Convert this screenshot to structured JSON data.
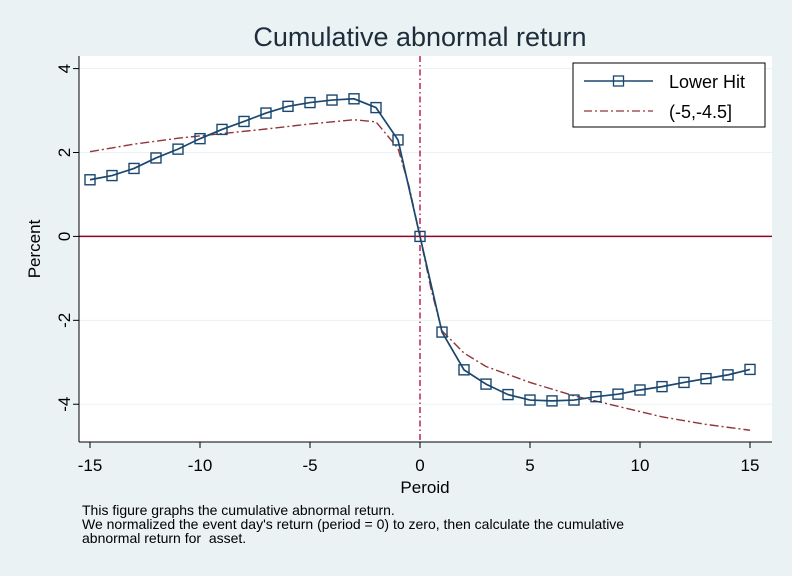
{
  "chart_data": {
    "type": "line",
    "title": "Cumulative abnormal return",
    "xlabel": "Peroid",
    "ylabel": "Percent",
    "xlim": [
      -15.5,
      16
    ],
    "ylim": [
      -4.9,
      4.3
    ],
    "x_ticks": [
      -15,
      -10,
      -5,
      0,
      5,
      10,
      15
    ],
    "x_tick_labels": [
      "-15",
      "-10",
      "-5",
      "0",
      "5",
      "10",
      "15"
    ],
    "y_ticks": [
      -4,
      -2,
      0,
      2,
      4
    ],
    "y_tick_labels": [
      "-4",
      "-2",
      "0",
      "2",
      "4"
    ],
    "grid": true,
    "legend_position": "top-right",
    "hline": {
      "y": 0,
      "color": "#990022"
    },
    "vline": {
      "x": 0,
      "color": "#b0003a"
    },
    "series": [
      {
        "name": "Lower Hit",
        "color": "#1a476f",
        "marker": "hollow-square",
        "x": [
          -15,
          -14,
          -13,
          -12,
          -11,
          -10,
          -9,
          -8,
          -7,
          -6,
          -5,
          -4,
          -3,
          -2,
          -1,
          0,
          1,
          2,
          3,
          4,
          5,
          6,
          7,
          8,
          9,
          10,
          11,
          12,
          13,
          14,
          15
        ],
        "y": [
          1.35,
          1.45,
          1.62,
          1.87,
          2.08,
          2.33,
          2.55,
          2.74,
          2.94,
          3.1,
          3.19,
          3.25,
          3.28,
          3.07,
          2.3,
          0.0,
          -2.28,
          -3.18,
          -3.52,
          -3.77,
          -3.9,
          -3.92,
          -3.9,
          -3.82,
          -3.76,
          -3.66,
          -3.58,
          -3.48,
          -3.39,
          -3.3,
          -3.17
        ]
      },
      {
        "name": "(-5,-4.5]",
        "color": "#90353b",
        "line_style": "dash-dot",
        "x": [
          -15,
          -13,
          -11,
          -9,
          -7,
          -5,
          -3,
          -2,
          -1,
          -0.5,
          0,
          0.5,
          1,
          2,
          3,
          5,
          7,
          9,
          11,
          13,
          15
        ],
        "y": [
          2.02,
          2.2,
          2.34,
          2.45,
          2.56,
          2.68,
          2.78,
          2.73,
          2.1,
          1.2,
          0.0,
          -1.25,
          -2.25,
          -2.78,
          -3.1,
          -3.48,
          -3.8,
          -4.05,
          -4.3,
          -4.48,
          -4.62
        ]
      }
    ]
  },
  "notes": [
    "This figure graphs the cumulative abnormal return.",
    "We normalized the event day's return (period = 0) to zero, then calculate the cumulative",
    "abnormal return for  asset."
  ]
}
